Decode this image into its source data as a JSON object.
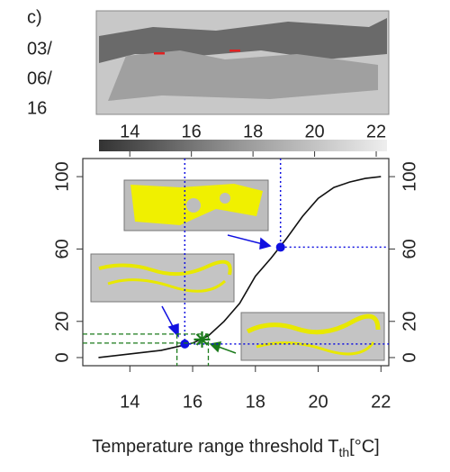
{
  "chart_data": {
    "type": "line",
    "panel_label": "c)",
    "date_lines": [
      "03/",
      "06/",
      "16"
    ],
    "xlabel": {
      "text": "Temperature range threshold T",
      "sub": "th",
      "unit": "[°C]"
    },
    "xlim": [
      12.5,
      22.25
    ],
    "ylim": [
      -4.5,
      110
    ],
    "xticks": [
      14,
      16,
      18,
      20,
      22
    ],
    "yticks": [
      0,
      20,
      60,
      100
    ],
    "colorbar": {
      "lim": [
        13,
        22.35
      ],
      "ticks": [
        14,
        16,
        18,
        20,
        22
      ]
    },
    "series": [
      {
        "color": "#111111",
        "x": [
          13,
          14,
          15,
          15.5,
          16,
          16.5,
          17,
          17.5,
          18,
          18.5,
          19,
          19.5,
          20,
          20.5,
          21,
          21.5,
          22
        ],
        "values": [
          0,
          2,
          4,
          6,
          8,
          12,
          20,
          30,
          45,
          55,
          66,
          78,
          88,
          94,
          97,
          99,
          100
        ]
      }
    ],
    "markers": [
      {
        "x": 15.75,
        "y": 7.5,
        "color": "#1010e0"
      },
      {
        "x": 18.8,
        "y": 61,
        "color": "#1010e0"
      },
      {
        "x": 16.3,
        "y": 10,
        "color": "#1a7a1a",
        "x_range": [
          15.5,
          16.5
        ],
        "y_range": [
          8,
          13
        ]
      }
    ]
  }
}
